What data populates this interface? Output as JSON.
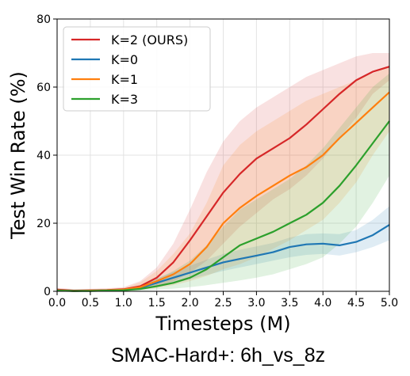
{
  "caption": "SMAC-Hard+: 6h_vs_8z",
  "chart_data": {
    "type": "line",
    "title": "",
    "xlabel": "Timesteps (M)",
    "ylabel": "Test Win Rate (%)",
    "xlim": [
      0.0,
      5.0
    ],
    "ylim": [
      0,
      80
    ],
    "x_ticks": [
      "0.0",
      "0.5",
      "1.0",
      "1.5",
      "2.0",
      "2.5",
      "3.0",
      "3.5",
      "4.0",
      "4.5",
      "5.0"
    ],
    "y_ticks": [
      "0",
      "20",
      "40",
      "60",
      "80"
    ],
    "grid": true,
    "legend_position": "top-left",
    "x": [
      0.0,
      0.25,
      0.5,
      0.75,
      1.0,
      1.25,
      1.5,
      1.75,
      2.0,
      2.25,
      2.5,
      2.75,
      3.0,
      3.25,
      3.5,
      3.75,
      4.0,
      4.25,
      4.5,
      4.75,
      5.0
    ],
    "series": [
      {
        "name": "K=2 (OURS)",
        "color": "#d62728",
        "values": [
          0.5,
          0.2,
          0.3,
          0.4,
          0.6,
          1.5,
          4.0,
          8.5,
          15.0,
          22.0,
          29.0,
          34.5,
          39.0,
          42.0,
          45.0,
          49.0,
          53.5,
          58.0,
          62.0,
          64.5,
          66.0
        ],
        "lower": [
          0.0,
          0.0,
          0.0,
          0.1,
          0.2,
          0.6,
          1.5,
          3.0,
          5.5,
          9.0,
          14.0,
          19.0,
          23.0,
          27.0,
          30.0,
          34.0,
          39.0,
          45.0,
          51.0,
          58.0,
          62.0
        ],
        "upper": [
          1.0,
          0.6,
          0.7,
          0.9,
          1.2,
          3.0,
          7.0,
          14.0,
          24.0,
          35.0,
          44.0,
          50.0,
          54.0,
          57.0,
          60.0,
          63.0,
          65.0,
          67.0,
          69.0,
          70.0,
          70.0
        ]
      },
      {
        "name": "K=0",
        "color": "#1f77b4",
        "values": [
          0.3,
          0.1,
          0.2,
          0.3,
          0.4,
          1.0,
          2.5,
          4.0,
          5.5,
          7.0,
          8.5,
          9.5,
          10.5,
          11.5,
          13.0,
          13.8,
          14.0,
          13.5,
          14.5,
          16.5,
          19.5
        ],
        "lower": [
          0.0,
          0.0,
          0.0,
          0.1,
          0.1,
          0.4,
          1.2,
          2.3,
          3.5,
          4.8,
          6.0,
          7.0,
          8.0,
          9.0,
          10.0,
          10.7,
          11.0,
          10.5,
          11.5,
          13.0,
          15.0
        ],
        "upper": [
          0.8,
          0.4,
          0.5,
          0.6,
          0.8,
          1.7,
          3.8,
          5.7,
          7.5,
          9.3,
          11.0,
          12.2,
          13.2,
          14.2,
          15.8,
          16.8,
          17.0,
          16.8,
          18.0,
          21.0,
          25.0
        ]
      },
      {
        "name": "K=1",
        "color": "#ff7f0e",
        "values": [
          0.3,
          0.1,
          0.2,
          0.3,
          0.5,
          1.2,
          3.0,
          5.0,
          8.0,
          13.0,
          20.0,
          24.5,
          28.0,
          31.0,
          34.0,
          36.5,
          40.0,
          45.0,
          49.5,
          54.0,
          58.5
        ],
        "lower": [
          0.0,
          0.0,
          0.0,
          0.1,
          0.1,
          0.4,
          1.0,
          1.8,
          3.0,
          4.5,
          6.5,
          8.0,
          10.0,
          12.5,
          15.0,
          18.0,
          21.0,
          26.0,
          32.0,
          40.0,
          47.0
        ],
        "upper": [
          0.7,
          0.4,
          0.5,
          0.7,
          1.0,
          2.6,
          6.0,
          11.0,
          17.0,
          26.0,
          37.0,
          43.0,
          47.0,
          50.0,
          53.0,
          56.0,
          58.0,
          60.0,
          62.0,
          64.0,
          66.0
        ]
      },
      {
        "name": "K=3",
        "color": "#2ca02c",
        "values": [
          0.2,
          0.1,
          0.1,
          0.2,
          0.3,
          0.7,
          1.5,
          2.5,
          4.0,
          6.5,
          10.0,
          13.5,
          15.5,
          17.5,
          20.0,
          22.5,
          26.0,
          31.0,
          37.0,
          43.5,
          50.0
        ],
        "lower": [
          0.0,
          0.0,
          0.0,
          0.0,
          0.1,
          0.2,
          0.5,
          0.8,
          1.2,
          1.8,
          2.5,
          3.2,
          4.0,
          5.0,
          6.5,
          8.0,
          10.0,
          14.0,
          19.0,
          26.0,
          34.0
        ],
        "upper": [
          0.5,
          0.3,
          0.3,
          0.5,
          0.7,
          1.6,
          3.5,
          6.0,
          9.0,
          13.5,
          19.0,
          24.0,
          27.0,
          30.0,
          33.0,
          37.0,
          42.0,
          48.0,
          54.0,
          60.0,
          64.0
        ]
      }
    ]
  }
}
